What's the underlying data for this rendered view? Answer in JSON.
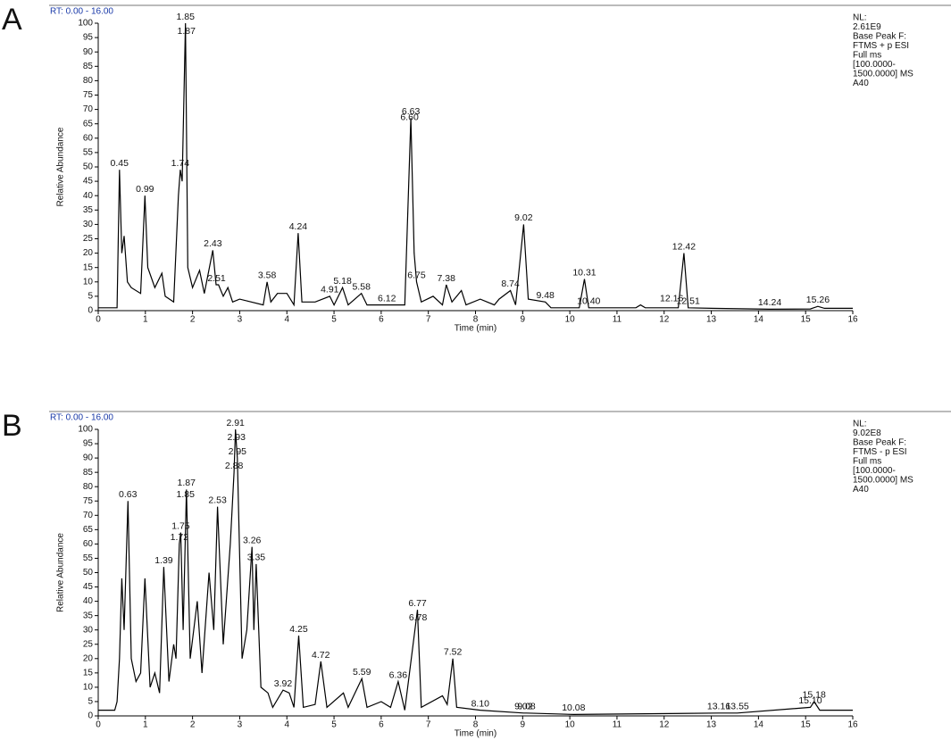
{
  "chart_data": [
    {
      "type": "line",
      "panel_label": "A",
      "range_label": "RT: 0.00 - 16.00",
      "info_lines": [
        "NL:",
        "2.61E9",
        "Base Peak F:",
        "FTMS + p ESI",
        "Full ms",
        "[100.0000-",
        "1500.0000]  MS",
        "A40"
      ],
      "x_label": "Time (min)",
      "y_label": "Relative Abundance",
      "xlim": [
        0,
        16
      ],
      "ylim": [
        0,
        100
      ],
      "xticks": [
        0,
        1,
        2,
        3,
        4,
        5,
        6,
        7,
        8,
        9,
        10,
        11,
        12,
        13,
        14,
        15,
        16
      ],
      "yticks": [
        0,
        5,
        10,
        15,
        20,
        25,
        30,
        35,
        40,
        45,
        50,
        55,
        60,
        65,
        70,
        75,
        80,
        85,
        90,
        95,
        100
      ],
      "series": [
        {
          "color": "#000000",
          "x": [
            0,
            0.4,
            0.45,
            0.5,
            0.55,
            0.62,
            0.7,
            0.9,
            0.99,
            1.05,
            1.2,
            1.35,
            1.42,
            1.6,
            1.7,
            1.74,
            1.78,
            1.85,
            1.9,
            2.0,
            2.15,
            2.25,
            2.43,
            2.5,
            2.55,
            2.65,
            2.75,
            2.85,
            3.0,
            3.5,
            3.58,
            3.66,
            3.8,
            4.0,
            4.15,
            4.24,
            4.32,
            4.6,
            4.91,
            5.0,
            5.18,
            5.3,
            5.58,
            5.7,
            6.12,
            6.5,
            6.63,
            6.7,
            6.75,
            6.85,
            7.1,
            7.3,
            7.38,
            7.5,
            7.7,
            7.8,
            8.1,
            8.4,
            8.5,
            8.74,
            8.85,
            9.02,
            9.12,
            9.48,
            9.6,
            10.2,
            10.31,
            10.4,
            11.4,
            11.5,
            11.6,
            12.16,
            12.3,
            12.42,
            12.51,
            13,
            14.24,
            15.1,
            15.26,
            15.4,
            16
          ],
          "values": [
            1,
            1,
            49,
            20,
            26,
            10,
            8,
            6,
            40,
            15,
            8,
            13,
            5,
            3,
            40,
            49,
            45,
            100,
            15,
            8,
            14,
            6,
            21,
            9,
            9,
            5,
            8,
            3,
            4,
            2,
            10,
            3,
            6,
            6,
            2,
            27,
            3,
            3,
            5,
            2,
            8,
            2,
            6,
            2,
            2,
            2,
            67,
            20,
            10,
            3,
            5,
            2,
            9,
            3,
            7,
            2,
            4,
            2,
            4,
            7,
            2,
            30,
            4,
            3,
            1,
            1,
            11,
            1,
            1,
            2,
            1,
            1,
            1,
            20,
            1,
            0.8,
            0.5,
            0.6,
            1.5,
            0.8,
            0.8
          ]
        }
      ],
      "annotations": [
        {
          "label": "0.45",
          "x": 0.45,
          "y": 49
        },
        {
          "label": "0.99",
          "x": 0.99,
          "y": 40
        },
        {
          "label": "1.74",
          "x": 1.74,
          "y": 49
        },
        {
          "label": "1.85",
          "x": 1.85,
          "y": 100
        },
        {
          "label": "1.87",
          "x": 1.87,
          "y": 95
        },
        {
          "label": "2.43",
          "x": 2.43,
          "y": 21
        },
        {
          "label": "2.51",
          "x": 2.51,
          "y": 9
        },
        {
          "label": "3.58",
          "x": 3.58,
          "y": 10
        },
        {
          "label": "4.24",
          "x": 4.24,
          "y": 27
        },
        {
          "label": "4.91",
          "x": 4.91,
          "y": 5
        },
        {
          "label": "5.18",
          "x": 5.18,
          "y": 8
        },
        {
          "label": "5.58",
          "x": 5.58,
          "y": 6
        },
        {
          "label": "6.12",
          "x": 6.12,
          "y": 2
        },
        {
          "label": "6.60",
          "x": 6.6,
          "y": 65
        },
        {
          "label": "6.63",
          "x": 6.63,
          "y": 67
        },
        {
          "label": "6.75",
          "x": 6.75,
          "y": 10
        },
        {
          "label": "7.38",
          "x": 7.38,
          "y": 9
        },
        {
          "label": "8.74",
          "x": 8.74,
          "y": 7
        },
        {
          "label": "9.02",
          "x": 9.02,
          "y": 30
        },
        {
          "label": "9.48",
          "x": 9.48,
          "y": 3
        },
        {
          "label": "10.31",
          "x": 10.31,
          "y": 11
        },
        {
          "label": "10.40",
          "x": 10.4,
          "y": 1
        },
        {
          "label": "12.16",
          "x": 12.16,
          "y": 2
        },
        {
          "label": "12.42",
          "x": 12.42,
          "y": 20
        },
        {
          "label": "12.51",
          "x": 12.51,
          "y": 1
        },
        {
          "label": "14.24",
          "x": 14.24,
          "y": 0.5
        },
        {
          "label": "15.26",
          "x": 15.26,
          "y": 1.5
        }
      ]
    },
    {
      "type": "line",
      "panel_label": "B",
      "range_label": "RT: 0.00 - 16.00",
      "info_lines": [
        "NL:",
        "9.02E8",
        "Base Peak F:",
        "FTMS - p ESI",
        "Full ms",
        "[100.0000-",
        "1500.0000]  MS",
        "A40"
      ],
      "x_label": "Time (min)",
      "y_label": "Relative Abundance",
      "xlim": [
        0,
        16
      ],
      "ylim": [
        0,
        100
      ],
      "xticks": [
        0,
        1,
        2,
        3,
        4,
        5,
        6,
        7,
        8,
        9,
        10,
        11,
        12,
        13,
        14,
        15,
        16
      ],
      "yticks": [
        0,
        5,
        10,
        15,
        20,
        25,
        30,
        35,
        40,
        45,
        50,
        55,
        60,
        65,
        70,
        75,
        80,
        85,
        90,
        95,
        100
      ],
      "series": [
        {
          "color": "#000000",
          "x": [
            0,
            0.35,
            0.4,
            0.45,
            0.5,
            0.55,
            0.63,
            0.7,
            0.8,
            0.9,
            0.99,
            1.1,
            1.2,
            1.3,
            1.39,
            1.5,
            1.6,
            1.65,
            1.72,
            1.75,
            1.8,
            1.87,
            1.95,
            2.1,
            2.2,
            2.35,
            2.45,
            2.53,
            2.65,
            2.8,
            2.88,
            2.91,
            2.93,
            2.95,
            3.05,
            3.15,
            3.26,
            3.3,
            3.35,
            3.45,
            3.6,
            3.7,
            3.92,
            4.05,
            4.15,
            4.25,
            4.35,
            4.6,
            4.72,
            4.85,
            5.2,
            5.3,
            5.59,
            5.7,
            6.0,
            6.2,
            6.36,
            6.5,
            6.77,
            6.78,
            6.85,
            7.3,
            7.4,
            7.52,
            7.6,
            8.1,
            9.02,
            9.08,
            10.08,
            13.16,
            13.55,
            15.1,
            15.18,
            15.3,
            16
          ],
          "values": [
            2,
            2,
            5,
            20,
            48,
            30,
            75,
            20,
            12,
            15,
            48,
            10,
            15,
            8,
            52,
            12,
            25,
            20,
            60,
            64,
            30,
            79,
            20,
            40,
            15,
            50,
            30,
            73,
            25,
            60,
            85,
            100,
            95,
            90,
            20,
            30,
            59,
            30,
            53,
            10,
            8,
            3,
            9,
            8,
            3,
            28,
            3,
            4,
            19,
            3,
            8,
            3,
            13,
            3,
            5,
            3,
            12,
            2,
            37,
            32,
            3,
            7,
            4,
            20,
            3,
            2,
            1,
            1,
            0.5,
            1,
            1,
            3,
            5,
            2,
            2
          ]
        }
      ],
      "annotations": [
        {
          "label": "0.63",
          "x": 0.63,
          "y": 75
        },
        {
          "label": "1.39",
          "x": 1.39,
          "y": 52
        },
        {
          "label": "1.72",
          "x": 1.72,
          "y": 60
        },
        {
          "label": "1.75",
          "x": 1.75,
          "y": 64
        },
        {
          "label": "1.85",
          "x": 1.85,
          "y": 75
        },
        {
          "label": "1.87",
          "x": 1.87,
          "y": 79
        },
        {
          "label": "2.53",
          "x": 2.53,
          "y": 73
        },
        {
          "label": "2.88",
          "x": 2.88,
          "y": 85
        },
        {
          "label": "2.91",
          "x": 2.91,
          "y": 100
        },
        {
          "label": "2.93",
          "x": 2.93,
          "y": 95
        },
        {
          "label": "2.95",
          "x": 2.95,
          "y": 90
        },
        {
          "label": "3.26",
          "x": 3.26,
          "y": 59
        },
        {
          "label": "3.35",
          "x": 3.35,
          "y": 53
        },
        {
          "label": "3.92",
          "x": 3.92,
          "y": 9
        },
        {
          "label": "4.25",
          "x": 4.25,
          "y": 28
        },
        {
          "label": "4.72",
          "x": 4.72,
          "y": 19
        },
        {
          "label": "5.59",
          "x": 5.59,
          "y": 13
        },
        {
          "label": "6.36",
          "x": 6.36,
          "y": 12
        },
        {
          "label": "6.77",
          "x": 6.77,
          "y": 37
        },
        {
          "label": "6.78",
          "x": 6.78,
          "y": 32
        },
        {
          "label": "7.52",
          "x": 7.52,
          "y": 20
        },
        {
          "label": "8.10",
          "x": 8.1,
          "y": 2
        },
        {
          "label": "9.02",
          "x": 9.02,
          "y": 1
        },
        {
          "label": "9.08",
          "x": 9.08,
          "y": 1
        },
        {
          "label": "10.08",
          "x": 10.08,
          "y": 0.5
        },
        {
          "label": "13.16",
          "x": 13.16,
          "y": 1
        },
        {
          "label": "13.55",
          "x": 13.55,
          "y": 1
        },
        {
          "label": "15.10",
          "x": 15.1,
          "y": 3
        },
        {
          "label": "15.18",
          "x": 15.18,
          "y": 5
        }
      ]
    }
  ]
}
